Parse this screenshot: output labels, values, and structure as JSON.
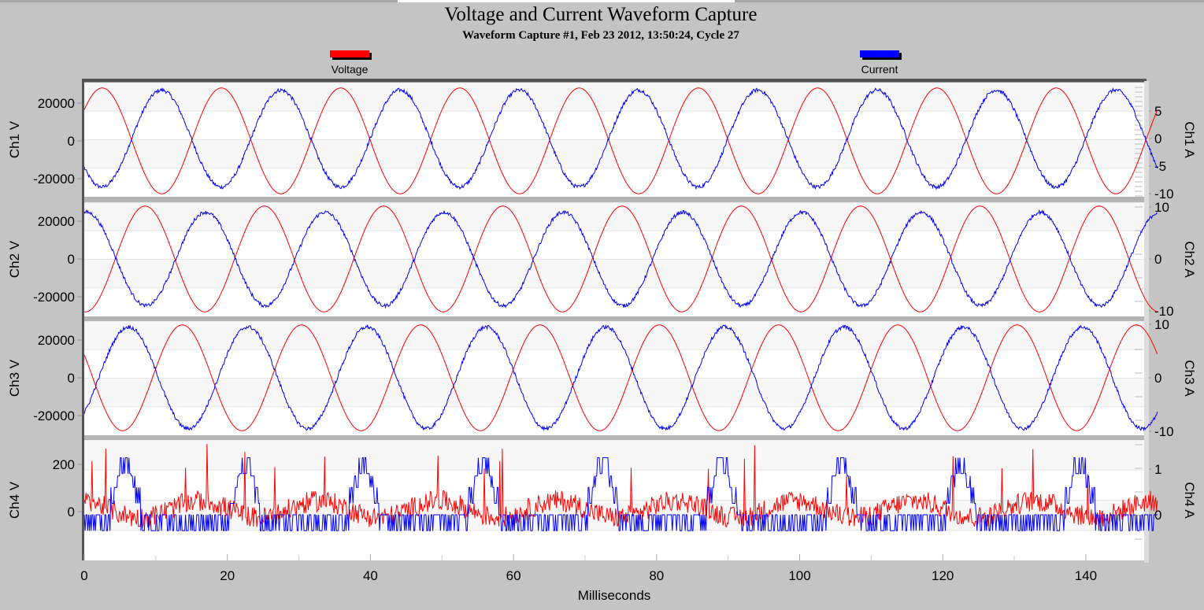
{
  "chart_data": {
    "type": "line",
    "title": "Voltage and Current Waveform Capture",
    "subtitle": "Waveform Capture #1, Feb 23 2012, 13:50:24,  Cycle 27",
    "legend": {
      "placement": "top",
      "items": [
        {
          "name": "Voltage",
          "color": "#ff0000"
        },
        {
          "name": "Current",
          "color": "#0000ff"
        }
      ]
    },
    "xlabel": "Milliseconds",
    "xlim": [
      0,
      148
    ],
    "xticks": [
      "0",
      "20",
      "40",
      "60",
      "80",
      "100",
      "120",
      "140"
    ],
    "x_range_of_data": [
      0,
      150
    ],
    "grid": true,
    "panels": [
      {
        "ylabel_left": "Ch1 V",
        "ylabel_right": "Ch1 A",
        "left_ticks": [
          "20000",
          "0",
          "-20000"
        ],
        "left_tick_values": [
          20000,
          0,
          -20000
        ],
        "right_ticks": [
          "5",
          "0",
          "-5",
          "-10"
        ],
        "right_tick_values": [
          5,
          0,
          -5,
          -10
        ],
        "voltage": {
          "waveform": "sine",
          "amplitude": 28000,
          "period_ms": 16.67,
          "peak_at_ms": 2.5
        },
        "current": {
          "waveform": "sine",
          "amplitude": 8.8,
          "period_ms": 16.67,
          "peak_at_ms": 10.8
        }
      },
      {
        "ylabel_left": "Ch2 V",
        "ylabel_right": "Ch2 A",
        "left_ticks": [
          "20000",
          "0",
          "-20000"
        ],
        "left_tick_values": [
          20000,
          0,
          -20000
        ],
        "right_ticks": [
          "10",
          "0",
          "-10"
        ],
        "right_tick_values": [
          10,
          0,
          -10
        ],
        "voltage": {
          "waveform": "sine",
          "amplitude": 28000,
          "period_ms": 16.67,
          "peak_at_ms": 8.5
        },
        "current": {
          "waveform": "sine",
          "amplitude": 9.0,
          "period_ms": 16.67,
          "peak_at_ms": 0.3
        }
      },
      {
        "ylabel_left": "Ch3 V",
        "ylabel_right": "Ch3 A",
        "left_ticks": [
          "20000",
          "0",
          "-20000"
        ],
        "left_tick_values": [
          20000,
          0,
          -20000
        ],
        "right_ticks": [
          "10",
          "0",
          "-10"
        ],
        "right_tick_values": [
          10,
          0,
          -10
        ],
        "voltage": {
          "waveform": "sine",
          "amplitude": 28000,
          "period_ms": 16.67,
          "peak_at_ms": 13.7
        },
        "current": {
          "waveform": "sine",
          "amplitude": 9.5,
          "period_ms": 16.67,
          "peak_at_ms": 6.2
        }
      },
      {
        "ylabel_left": "Ch4 V",
        "ylabel_right": "Ch4 A",
        "left_ticks": [
          "200",
          "0"
        ],
        "left_tick_values": [
          200,
          0
        ],
        "right_ticks": [
          "1",
          "0"
        ],
        "right_tick_values": [
          1,
          0
        ],
        "voltage": {
          "waveform": "noise",
          "baseline_range": [
            -60,
            80
          ],
          "spike_max": 290
        },
        "current": {
          "waveform": "pulses",
          "period_ms": 16.67,
          "first_pulse_ms": 5.8,
          "peak": 1.25,
          "min": -0.35
        }
      }
    ]
  }
}
